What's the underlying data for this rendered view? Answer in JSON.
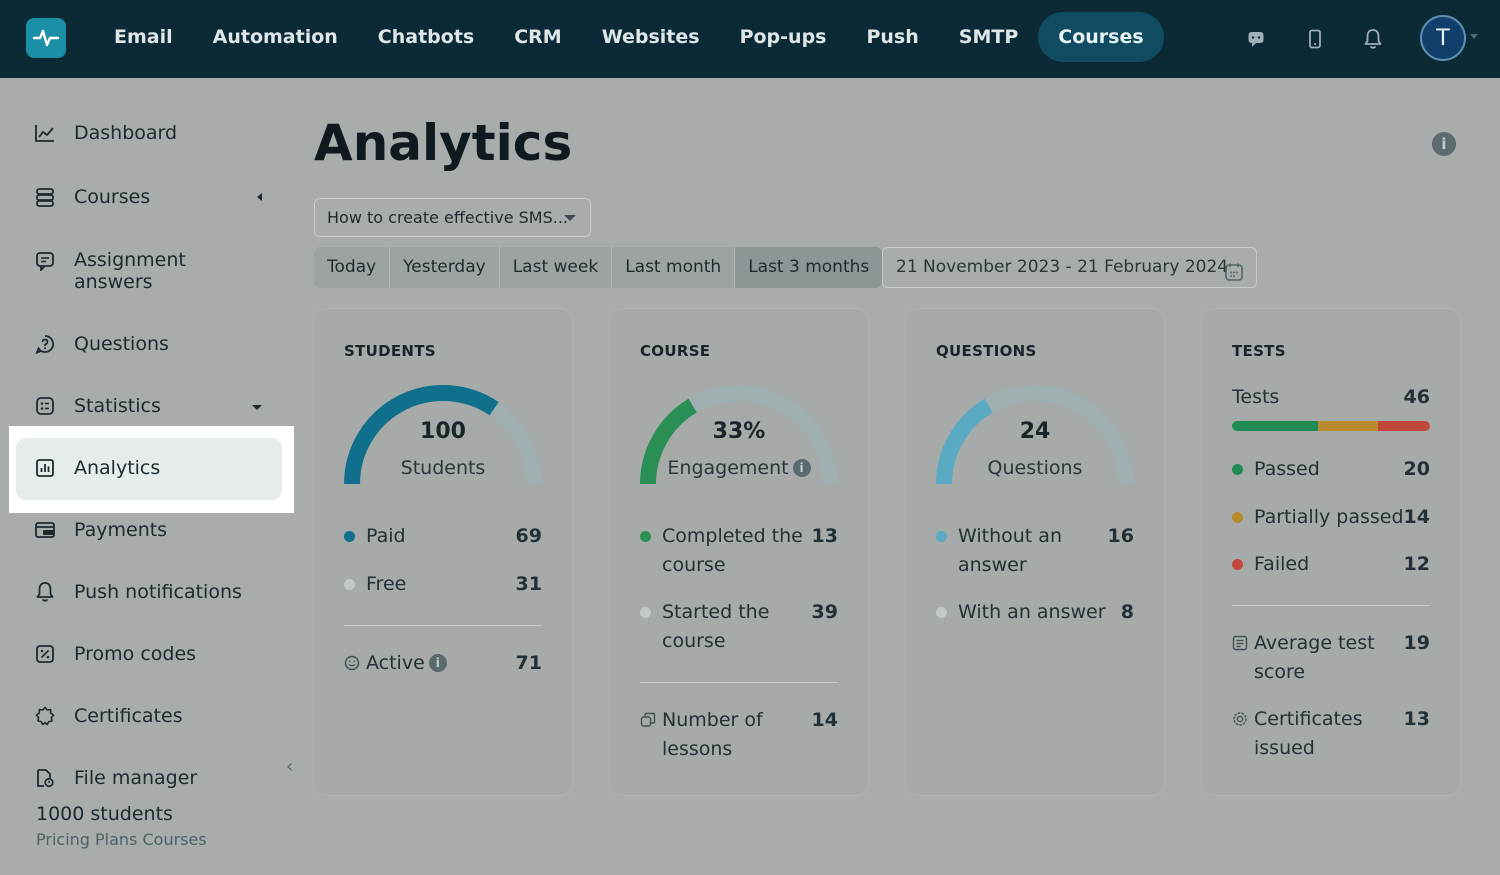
{
  "topnav": {
    "items": [
      "Email",
      "Automation",
      "Chatbots",
      "CRM",
      "Websites",
      "Pop-ups",
      "Push",
      "SMTP",
      "Courses"
    ],
    "active": "Courses",
    "avatar_initial": "T",
    "icons": [
      "chat-icon",
      "phone-icon",
      "bell-icon"
    ]
  },
  "sidebar": {
    "items": [
      {
        "label": "Dashboard",
        "icon": "chart-line-icon"
      },
      {
        "label": "Courses",
        "icon": "layers-icon"
      },
      {
        "label": "Assignment answers",
        "icon": "assignment-icon"
      },
      {
        "label": "Questions",
        "icon": "question-icon"
      },
      {
        "label": "Statistics",
        "icon": "statistics-icon"
      },
      {
        "label": "Analytics",
        "icon": "analytics-icon"
      },
      {
        "label": "Payments",
        "icon": "wallet-icon"
      },
      {
        "label": "Push notifications",
        "icon": "bell-icon"
      },
      {
        "label": "Promo codes",
        "icon": "promo-icon"
      },
      {
        "label": "Certificates",
        "icon": "certificate-icon"
      },
      {
        "label": "File manager",
        "icon": "file-icon"
      }
    ],
    "plan_count": "1000 students",
    "plan_name": "Pricing Plans Courses"
  },
  "main": {
    "title": "Analytics",
    "course_select": "How to create effective SMS...",
    "periods": [
      "Today",
      "Yesterday",
      "Last week",
      "Last month",
      "Last 3 months"
    ],
    "selected_period": "Last 3 months",
    "date_range": "21 November 2023 - 21 February 2024"
  },
  "cards": {
    "students": {
      "title": "STUDENTS",
      "gauge_value": "100",
      "gauge_label": "Students",
      "gauge_fill": 0.69,
      "rows": [
        {
          "label": "Paid",
          "value": "69"
        },
        {
          "label": "Free",
          "value": "31"
        }
      ],
      "active_label": "Active",
      "active_value": "71"
    },
    "course": {
      "title": "COURSE",
      "gauge_value": "33%",
      "gauge_label": "Engagement",
      "gauge_fill": 0.33,
      "rows": [
        {
          "label": "Completed the course",
          "value": "13"
        },
        {
          "label": "Started the course",
          "value": "39"
        }
      ],
      "lessons_label": "Number of lessons",
      "lessons_value": "14"
    },
    "questions": {
      "title": "QUESTIONS",
      "gauge_value": "24",
      "gauge_label": "Questions",
      "gauge_fill": 0.33,
      "rows": [
        {
          "label": "Without an answer",
          "value": "16"
        },
        {
          "label": "With an answer",
          "value": "8"
        }
      ]
    },
    "tests": {
      "title": "TESTS",
      "tests_label": "Tests",
      "tests_value": "46",
      "rows": [
        {
          "label": "Passed",
          "value": "20"
        },
        {
          "label": "Partially passed",
          "value": "14"
        },
        {
          "label": "Failed",
          "value": "12"
        }
      ],
      "avg_label": "Average test score",
      "avg_value": "19",
      "cert_label": "Certificates issued",
      "cert_value": "13"
    }
  },
  "colors": {
    "nav_bg": "#0c2a36",
    "students_arc": "#0f6f8c",
    "course_arc": "#2a8f55",
    "questions_arc": "#5aaac4",
    "passed": "#1f8a52",
    "partial": "#b88a2e",
    "failed": "#c2483c",
    "track": "#a0afb0"
  }
}
